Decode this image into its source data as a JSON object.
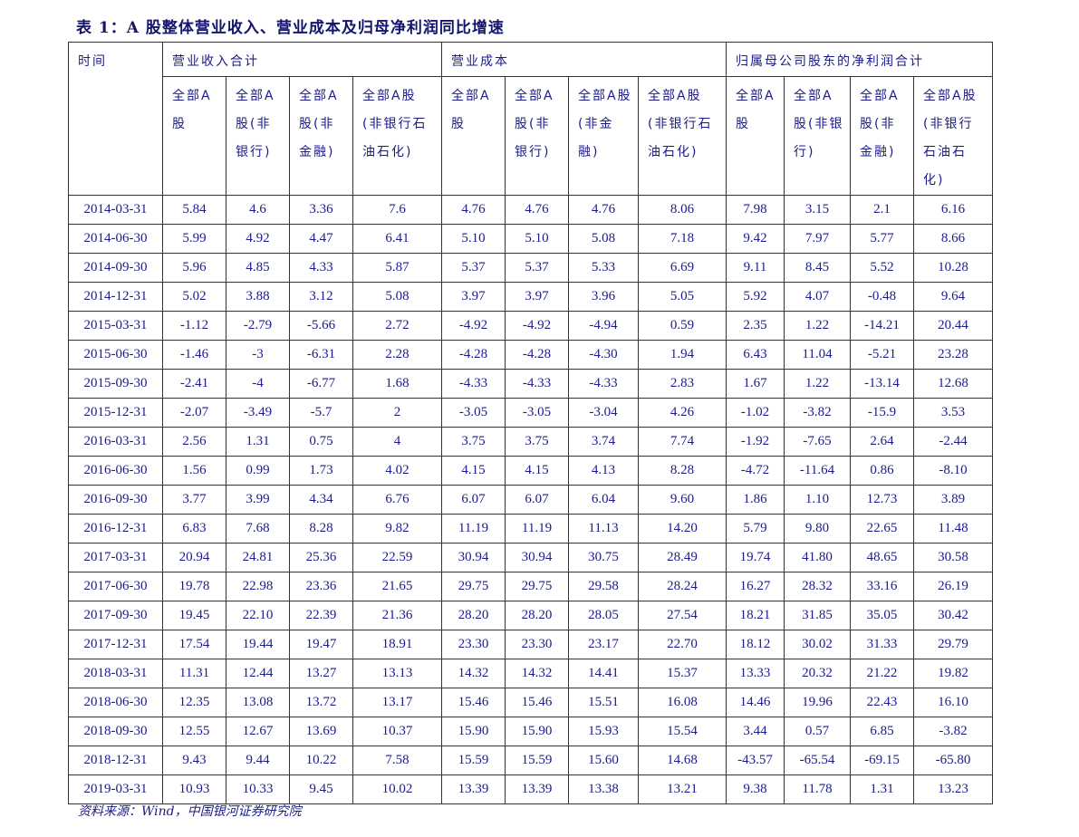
{
  "title": "表 1：A 股整体营业收入、营业成本及归母净利润同比增速",
  "headers": {
    "time": "时间",
    "groups": [
      "营业收入合计",
      "营业成本",
      "归属母公司股东的净利润合计"
    ],
    "sub": [
      "全部A股",
      "全部A股(非银行)",
      "全部A股(非金融)",
      "全部A股(非银行石油石化)"
    ]
  },
  "rows": [
    [
      "2014-03-31",
      "5.84",
      "4.6",
      "3.36",
      "7.6",
      "4.76",
      "4.76",
      "4.76",
      "8.06",
      "7.98",
      "3.15",
      "2.1",
      "6.16"
    ],
    [
      "2014-06-30",
      "5.99",
      "4.92",
      "4.47",
      "6.41",
      "5.10",
      "5.10",
      "5.08",
      "7.18",
      "9.42",
      "7.97",
      "5.77",
      "8.66"
    ],
    [
      "2014-09-30",
      "5.96",
      "4.85",
      "4.33",
      "5.87",
      "5.37",
      "5.37",
      "5.33",
      "6.69",
      "9.11",
      "8.45",
      "5.52",
      "10.28"
    ],
    [
      "2014-12-31",
      "5.02",
      "3.88",
      "3.12",
      "5.08",
      "3.97",
      "3.97",
      "3.96",
      "5.05",
      "5.92",
      "4.07",
      "-0.48",
      "9.64"
    ],
    [
      "2015-03-31",
      "-1.12",
      "-2.79",
      "-5.66",
      "2.72",
      "-4.92",
      "-4.92",
      "-4.94",
      "0.59",
      "2.35",
      "1.22",
      "-14.21",
      "20.44"
    ],
    [
      "2015-06-30",
      "-1.46",
      "-3",
      "-6.31",
      "2.28",
      "-4.28",
      "-4.28",
      "-4.30",
      "1.94",
      "6.43",
      "11.04",
      "-5.21",
      "23.28"
    ],
    [
      "2015-09-30",
      "-2.41",
      "-4",
      "-6.77",
      "1.68",
      "-4.33",
      "-4.33",
      "-4.33",
      "2.83",
      "1.67",
      "1.22",
      "-13.14",
      "12.68"
    ],
    [
      "2015-12-31",
      "-2.07",
      "-3.49",
      "-5.7",
      "2",
      "-3.05",
      "-3.05",
      "-3.04",
      "4.26",
      "-1.02",
      "-3.82",
      "-15.9",
      "3.53"
    ],
    [
      "2016-03-31",
      "2.56",
      "1.31",
      "0.75",
      "4",
      "3.75",
      "3.75",
      "3.74",
      "7.74",
      "-1.92",
      "-7.65",
      "2.64",
      "-2.44"
    ],
    [
      "2016-06-30",
      "1.56",
      "0.99",
      "1.73",
      "4.02",
      "4.15",
      "4.15",
      "4.13",
      "8.28",
      "-4.72",
      "-11.64",
      "0.86",
      "-8.10"
    ],
    [
      "2016-09-30",
      "3.77",
      "3.99",
      "4.34",
      "6.76",
      "6.07",
      "6.07",
      "6.04",
      "9.60",
      "1.86",
      "1.10",
      "12.73",
      "3.89"
    ],
    [
      "2016-12-31",
      "6.83",
      "7.68",
      "8.28",
      "9.82",
      "11.19",
      "11.19",
      "11.13",
      "14.20",
      "5.79",
      "9.80",
      "22.65",
      "11.48"
    ],
    [
      "2017-03-31",
      "20.94",
      "24.81",
      "25.36",
      "22.59",
      "30.94",
      "30.94",
      "30.75",
      "28.49",
      "19.74",
      "41.80",
      "48.65",
      "30.58"
    ],
    [
      "2017-06-30",
      "19.78",
      "22.98",
      "23.36",
      "21.65",
      "29.75",
      "29.75",
      "29.58",
      "28.24",
      "16.27",
      "28.32",
      "33.16",
      "26.19"
    ],
    [
      "2017-09-30",
      "19.45",
      "22.10",
      "22.39",
      "21.36",
      "28.20",
      "28.20",
      "28.05",
      "27.54",
      "18.21",
      "31.85",
      "35.05",
      "30.42"
    ],
    [
      "2017-12-31",
      "17.54",
      "19.44",
      "19.47",
      "18.91",
      "23.30",
      "23.30",
      "23.17",
      "22.70",
      "18.12",
      "30.02",
      "31.33",
      "29.79"
    ],
    [
      "2018-03-31",
      "11.31",
      "12.44",
      "13.27",
      "13.13",
      "14.32",
      "14.32",
      "14.41",
      "15.37",
      "13.33",
      "20.32",
      "21.22",
      "19.82"
    ],
    [
      "2018-06-30",
      "12.35",
      "13.08",
      "13.72",
      "13.17",
      "15.46",
      "15.46",
      "15.51",
      "16.08",
      "14.46",
      "19.96",
      "22.43",
      "16.10"
    ],
    [
      "2018-09-30",
      "12.55",
      "12.67",
      "13.69",
      "10.37",
      "15.90",
      "15.90",
      "15.93",
      "15.54",
      "3.44",
      "0.57",
      "6.85",
      "-3.82"
    ],
    [
      "2018-12-31",
      "9.43",
      "9.44",
      "10.22",
      "7.58",
      "15.59",
      "15.59",
      "15.60",
      "14.68",
      "-43.57",
      "-65.54",
      "-69.15",
      "-65.80"
    ],
    [
      "2019-03-31",
      "10.93",
      "10.33",
      "9.45",
      "10.02",
      "13.39",
      "13.39",
      "13.38",
      "13.21",
      "9.38",
      "11.78",
      "1.31",
      "13.23"
    ]
  ],
  "source": "资料来源：Wind，中国银河证券研究院"
}
